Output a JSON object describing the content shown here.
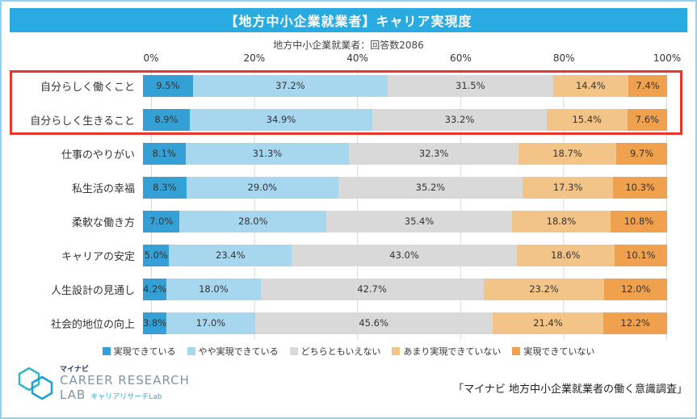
{
  "header": {
    "title": "【地方中小企業就業者】キャリア実現度",
    "bg_color": "#29abe2"
  },
  "subtitle": "地方中小企業就業者：回答数2086",
  "axis": {
    "ticks": [
      "0%",
      "20%",
      "40%",
      "60%",
      "80%",
      "100%"
    ]
  },
  "chart_data": {
    "type": "bar",
    "orientation": "horizontal",
    "stacked": true,
    "xlim": [
      0,
      100
    ],
    "grid": true,
    "categories": [
      "自分らしく働くこと",
      "自分らしく生きること",
      "仕事のやりがい",
      "私生活の幸福",
      "柔軟な働き方",
      "キャリアの安定",
      "人生設計の見通し",
      "社会的地位の向上"
    ],
    "series": [
      {
        "name": "実現できている",
        "color": "#35a0d6",
        "values": [
          9.5,
          8.9,
          8.1,
          8.3,
          7.0,
          5.0,
          4.2,
          3.8
        ]
      },
      {
        "name": "やや実現できている",
        "color": "#a7d6ef",
        "values": [
          37.2,
          34.9,
          31.3,
          29.0,
          28.0,
          23.4,
          18.0,
          17.0
        ]
      },
      {
        "name": "どちらともいえない",
        "color": "#d9d9d9",
        "values": [
          31.5,
          33.2,
          32.3,
          35.2,
          35.4,
          43.0,
          42.7,
          45.6
        ]
      },
      {
        "name": "あまり実現できていない",
        "color": "#f2c488",
        "values": [
          14.4,
          15.4,
          18.7,
          17.3,
          18.8,
          18.6,
          23.2,
          21.4
        ]
      },
      {
        "name": "実現できていない",
        "color": "#efa14d",
        "values": [
          7.4,
          7.6,
          9.7,
          10.3,
          10.8,
          10.1,
          12.0,
          12.2
        ]
      }
    ],
    "highlight_rows": [
      0,
      1
    ],
    "highlight_color": "#e8362d",
    "legend_position": "bottom"
  },
  "footer": {
    "logo_mynavi": "マイナビ",
    "logo_career": "CAREER RESEARCH",
    "logo_lab": "LAB",
    "logo_sub": "キャリアリサーチLab",
    "source": "「マイナビ 地方中小企業就業者の働く意識調査」"
  }
}
